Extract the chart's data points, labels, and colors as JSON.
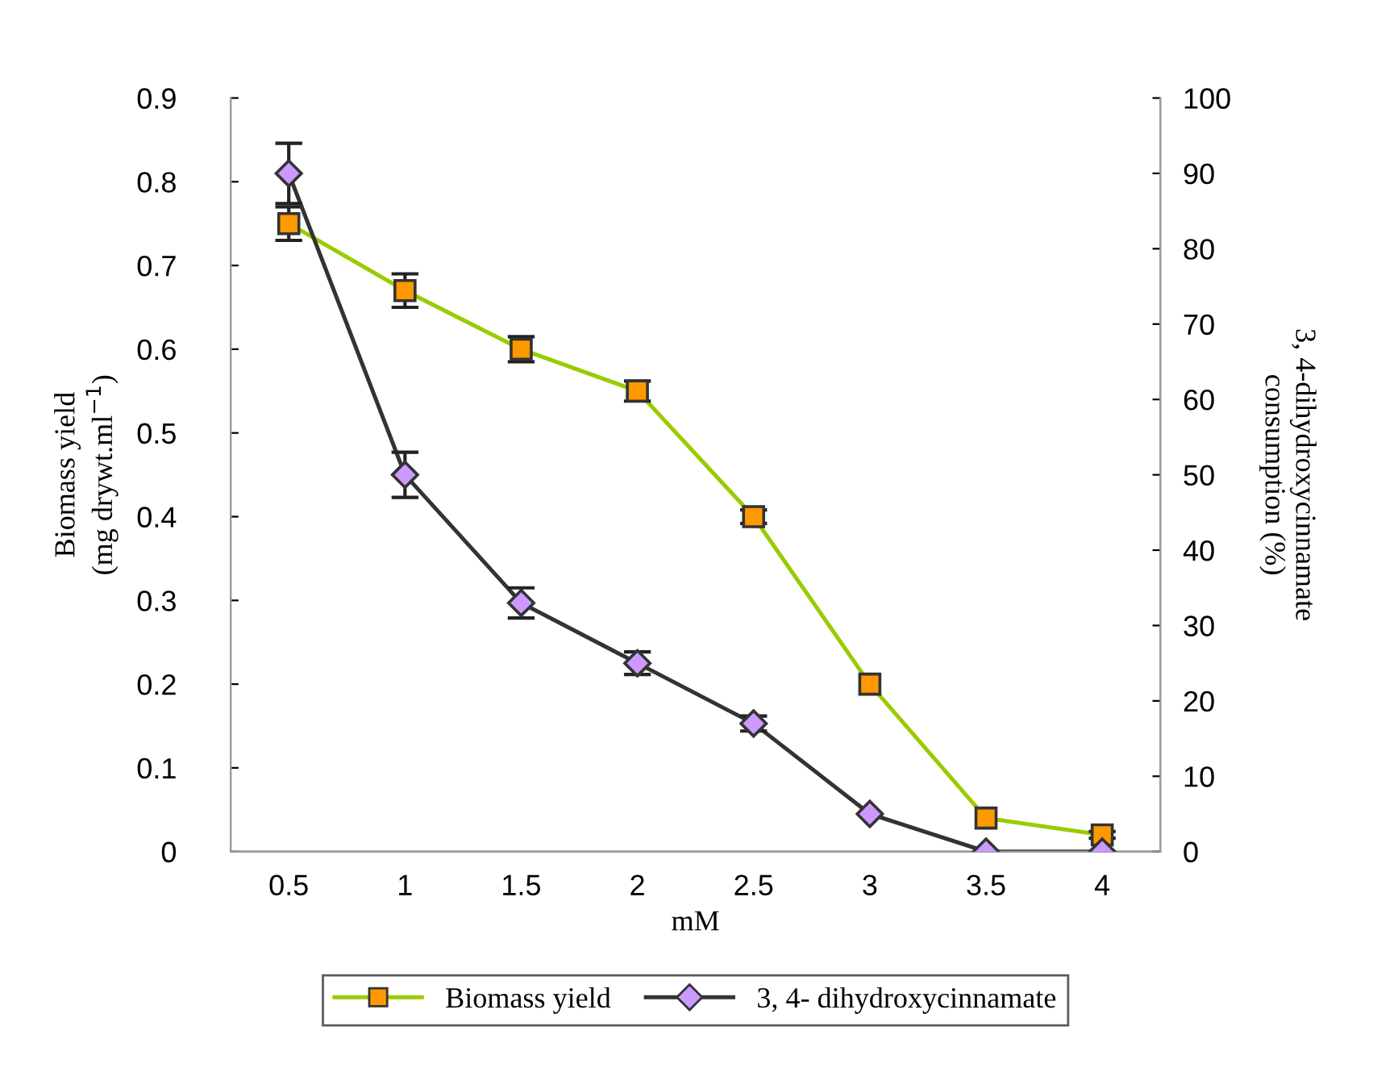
{
  "chart_data": {
    "type": "line",
    "xlabel": "mM",
    "ylabel": "Biomass yield\n(mg drywt.ml$^{−1}$)",
    "y2label": "3, 4-dihydroxycinnamate\nconsumption (%)",
    "categories": [
      "0.5",
      "1",
      "1.5",
      "2",
      "2.5",
      "3",
      "3.5",
      "4"
    ],
    "ylim": [
      0,
      0.9
    ],
    "yticks": [
      {
        "value": 0,
        "label": "0"
      },
      0.1,
      0.2,
      0.3,
      0.4,
      0.5,
      0.6,
      0.7,
      0.8,
      0.9
    ],
    "y2lim": [
      0,
      100
    ],
    "y2ticks": [
      0,
      10,
      20,
      30,
      40,
      50,
      60,
      70,
      80,
      90,
      100
    ],
    "grid": false,
    "legend": "bottom",
    "series": [
      {
        "name": "Biomass yield",
        "color": "#99cc00",
        "colors": [
          "#ff9900",
          "#ff9900",
          "#ff9900",
          "#ff9900",
          "#ff9900",
          "#ff9900",
          "#ff9900",
          "#ff9900"
        ],
        "marker": "square",
        "values": [
          0.75,
          0.67,
          0.6,
          0.55,
          0.4,
          0.2,
          0.04,
          0.02
        ],
        "errors": [
          0.02,
          0.02,
          0.015,
          0.012,
          0.008,
          null,
          null,
          0.004
        ]
      },
      {
        "name": "3, 4- dihydroxycinnamate",
        "color": "#333333",
        "colors": [
          "#cc99ff",
          "#cc99ff",
          "#cc99ff",
          "#cc99ff",
          "#cc99ff",
          "#cc99ff",
          "#cc99ff",
          "#cc99ff"
        ],
        "marker": "diamond",
        "axis": "y2",
        "values": [
          90,
          50,
          33,
          25,
          17,
          5,
          0,
          0
        ],
        "errors": [
          4,
          3,
          2,
          1.5,
          1,
          null,
          null,
          null
        ]
      }
    ]
  }
}
